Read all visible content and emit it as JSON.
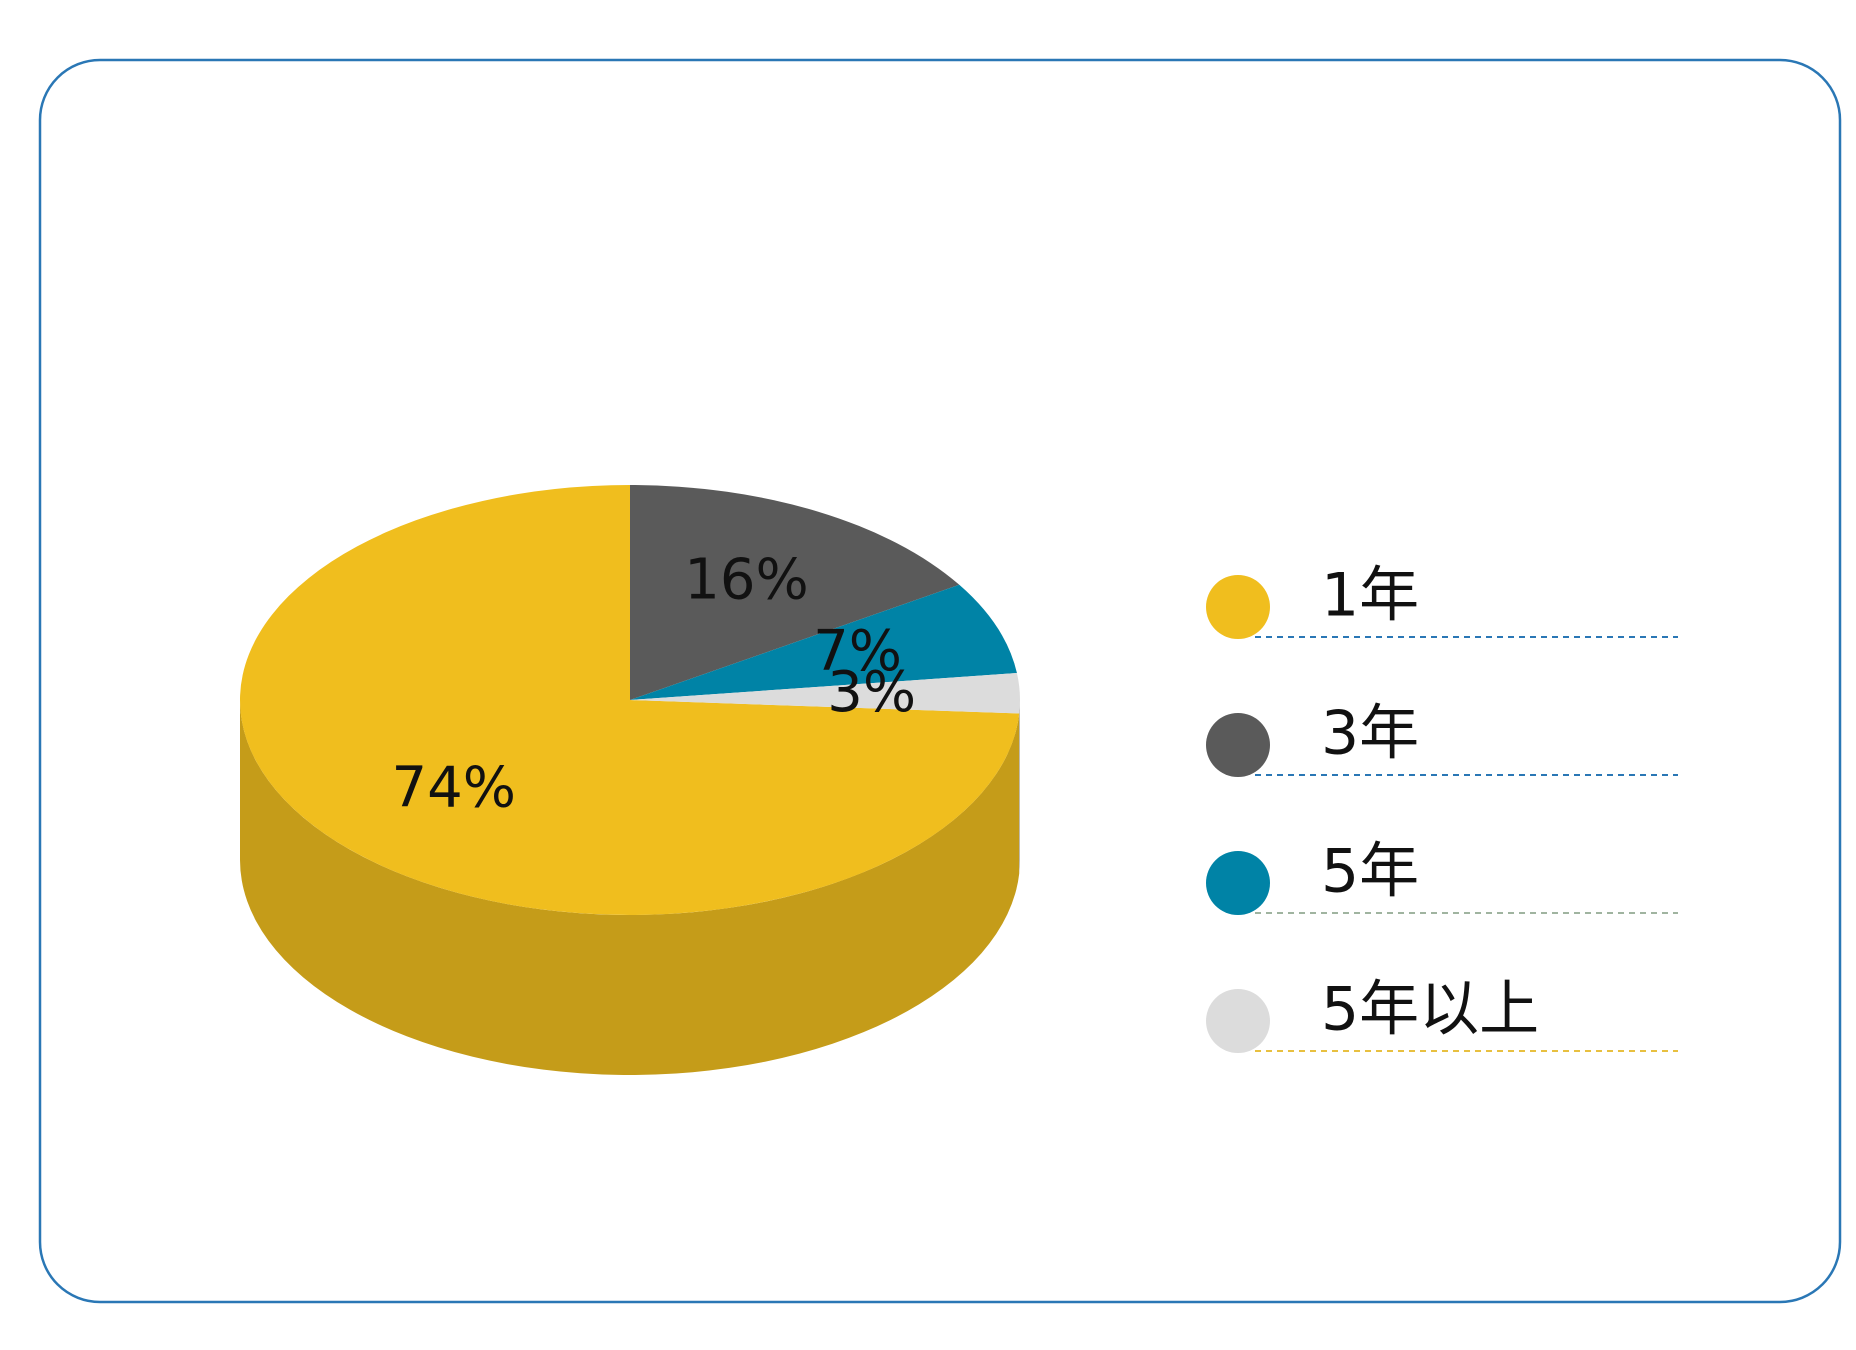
{
  "chart_data": {
    "type": "pie",
    "categories": [
      "1年",
      "3年",
      "5年",
      "5年以上"
    ],
    "values": [
      74,
      16,
      7,
      3
    ],
    "value_labels": [
      "74%",
      "16%",
      "7%",
      "3%"
    ],
    "colors": [
      "#f0be1e",
      "#5a5a5a",
      "#0083a6",
      "#dcdcdc"
    ],
    "legend": "right"
  }
}
